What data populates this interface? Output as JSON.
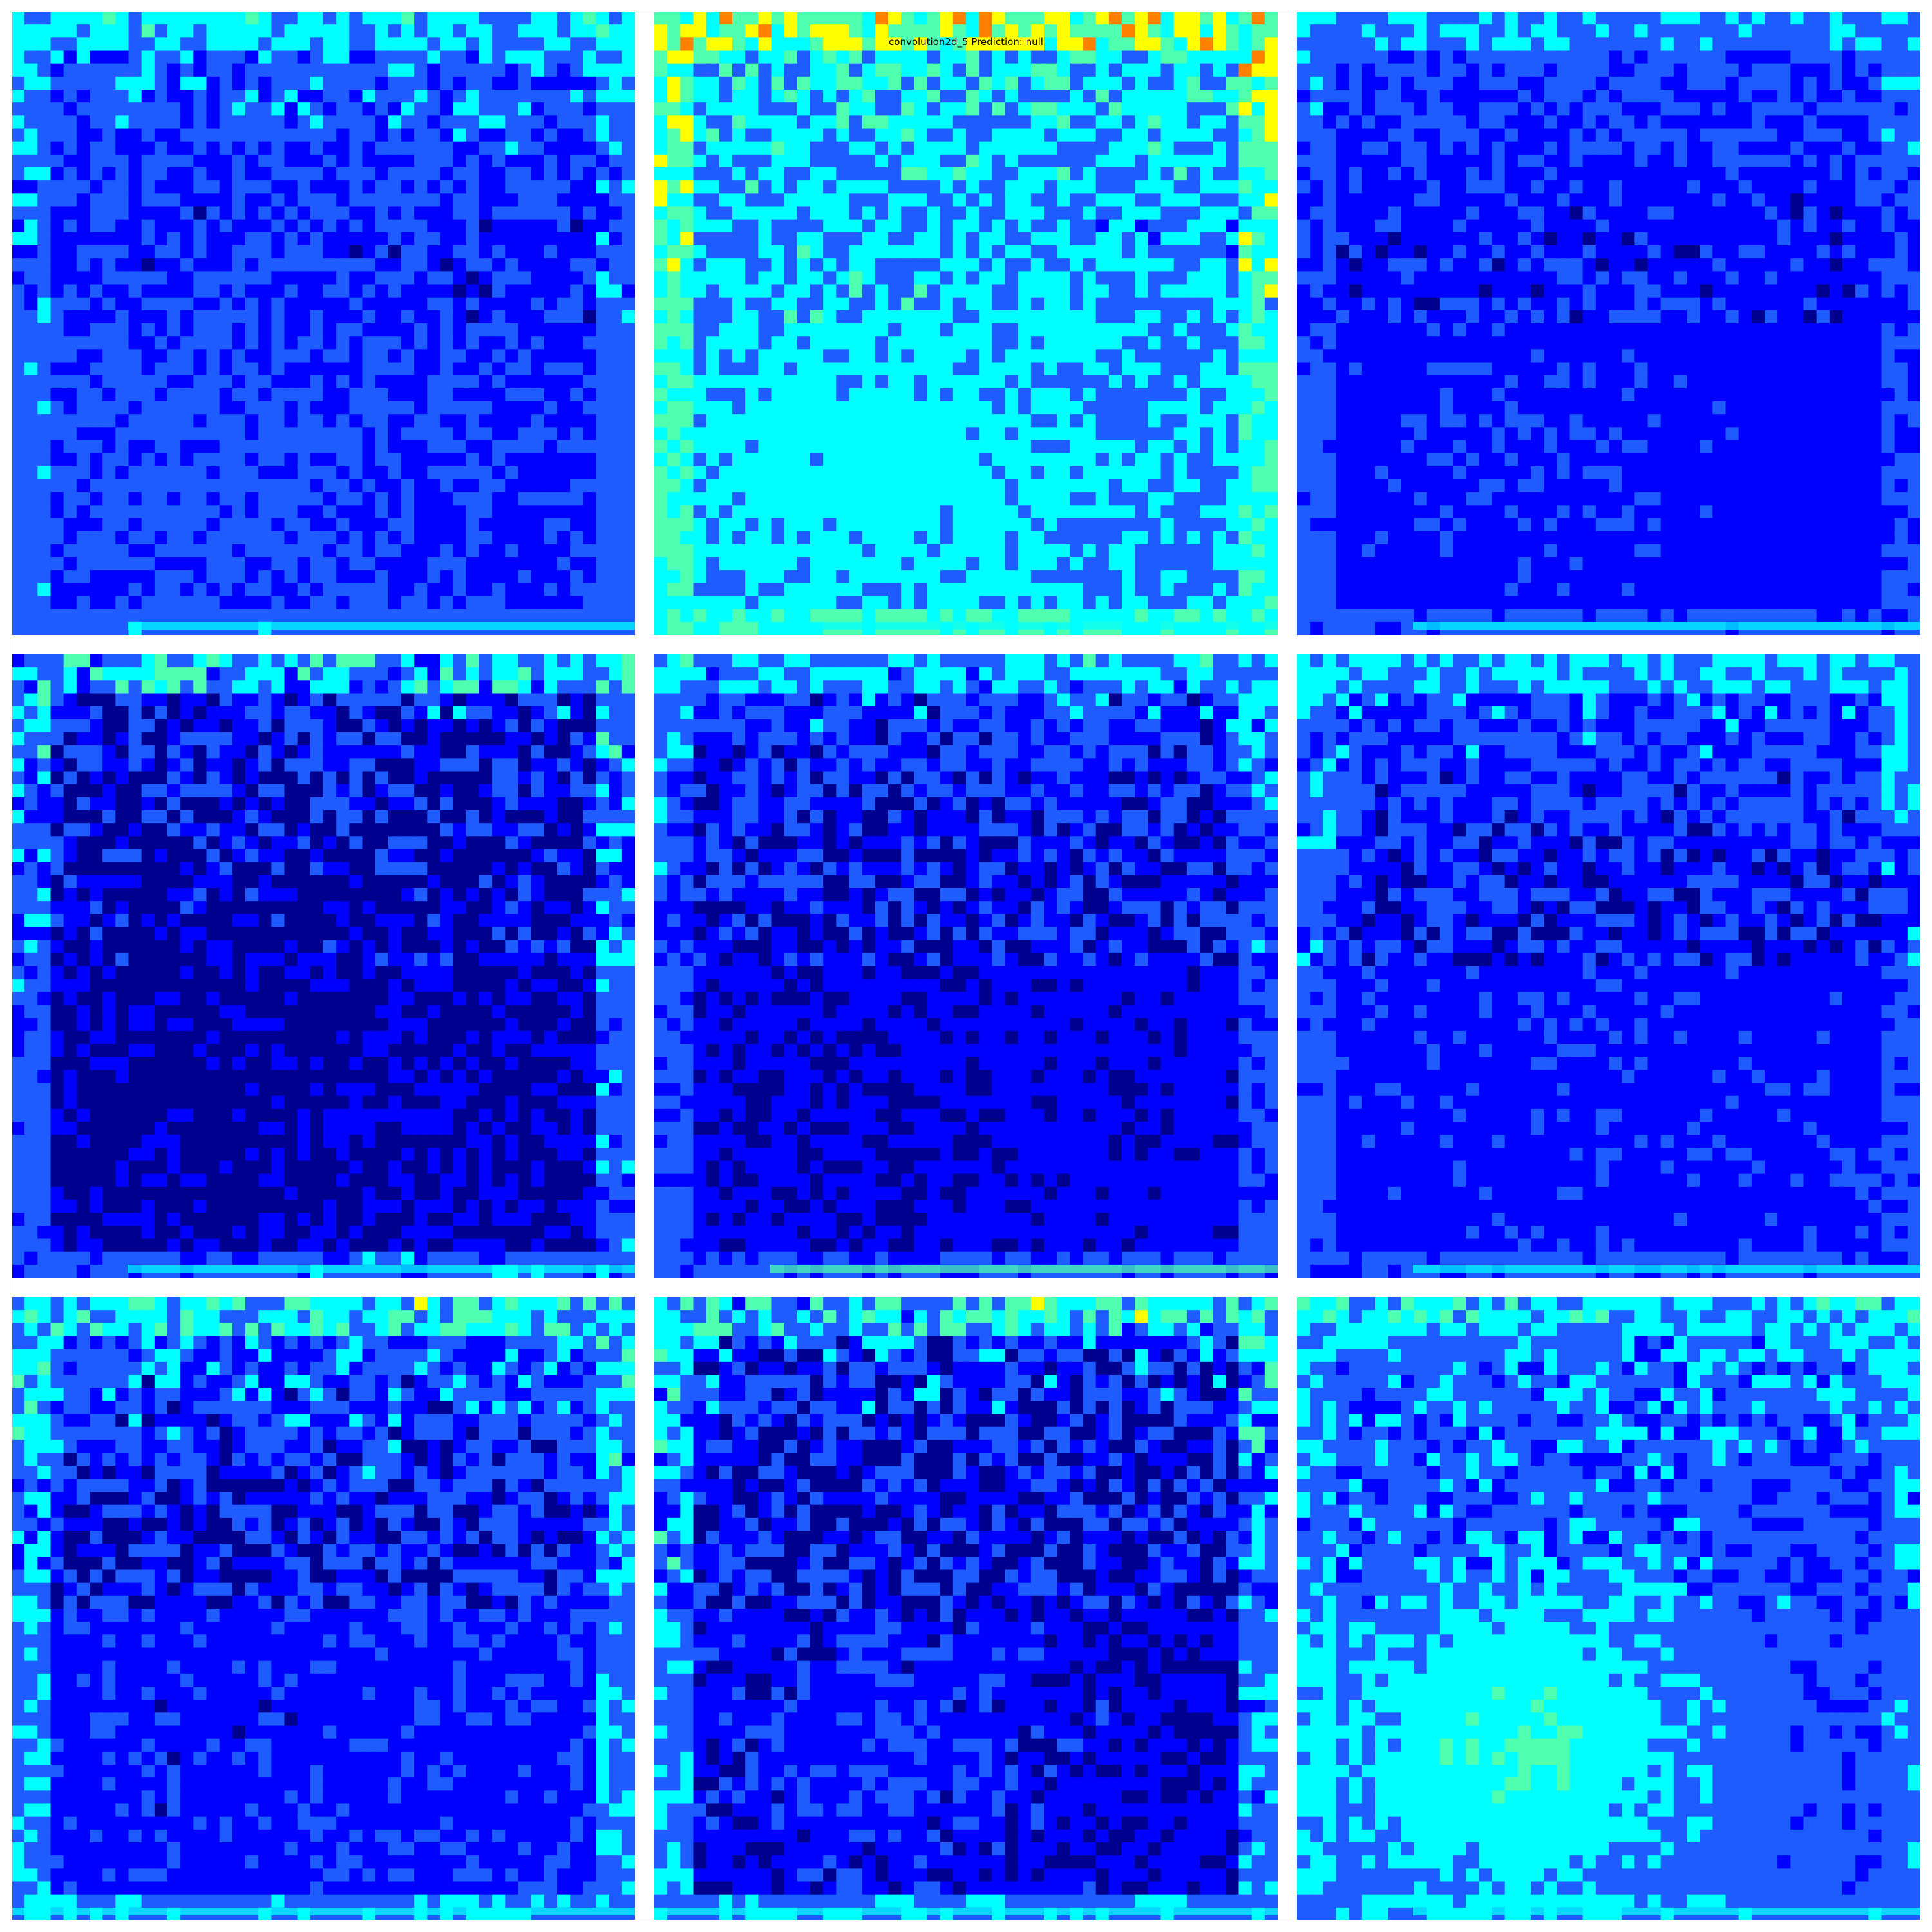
{
  "figure": {
    "caption": "convolution2d_5 Prediction: null",
    "colormap": "jet",
    "colors": {
      "dark_blue": "#00008f",
      "blue": "#0000ff",
      "mid_blue": "#1f5cff",
      "cyan": "#00ffff",
      "aqua_green": "#4fffb0",
      "yellow": "#ffff00",
      "orange": "#ff7f00",
      "red": "#ff0000"
    },
    "panels": [
      {
        "feature_map": "map-1"
      },
      {
        "feature_map": "map-2"
      },
      {
        "feature_map": "map-3"
      },
      {
        "feature_map": "map-4"
      },
      {
        "feature_map": "map-5"
      },
      {
        "feature_map": "map-6"
      },
      {
        "feature_map": "map-7"
      },
      {
        "feature_map": "map-8"
      },
      {
        "feature_map": "map-9"
      }
    ]
  }
}
